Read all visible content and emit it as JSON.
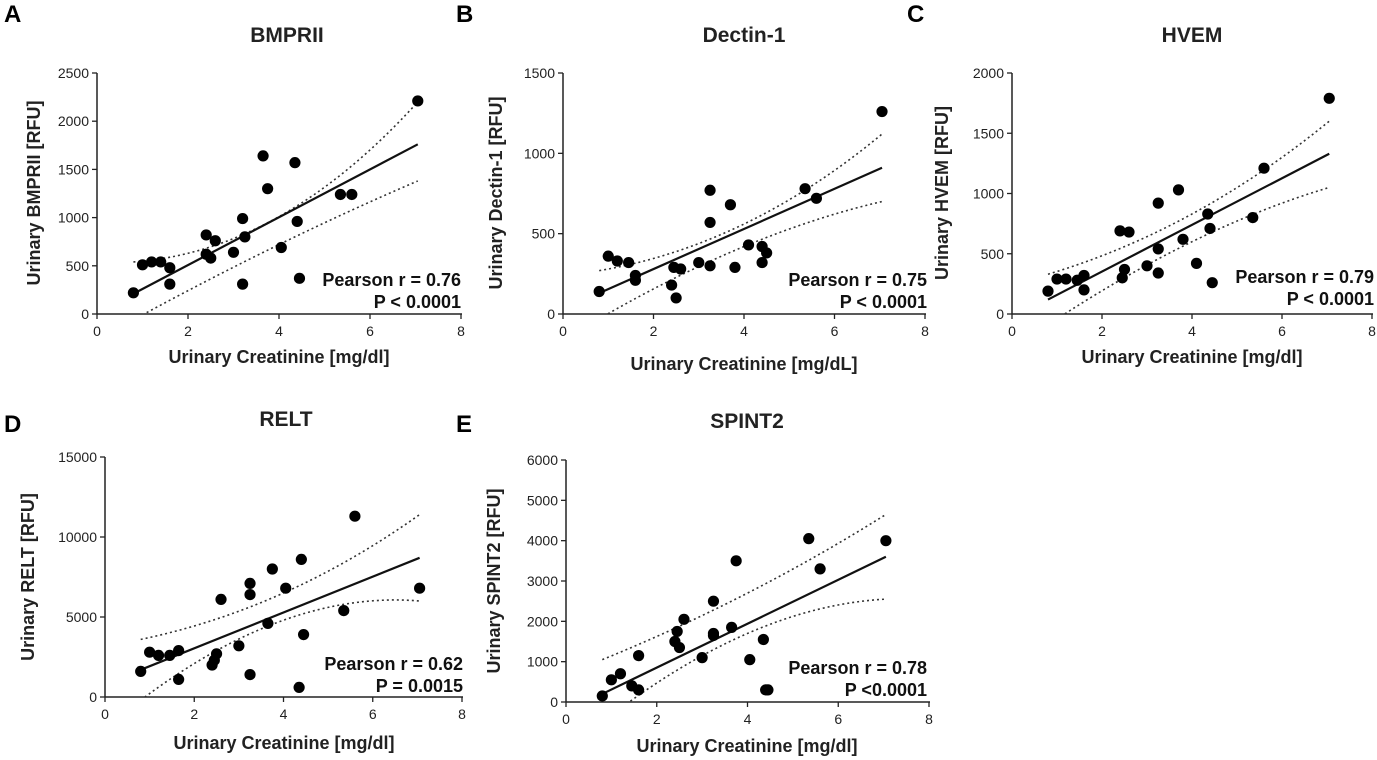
{
  "chart_data": [
    {
      "type": "scatter",
      "panel": "A",
      "title": "BMPRII",
      "xlabel": "Urinary Creatinine  [mg/dl]",
      "ylabel": "Urinary BMPRII [RFU]",
      "xlim": [
        0,
        8
      ],
      "ylim": [
        0,
        2500
      ],
      "xticks": [
        0,
        2,
        4,
        6,
        8
      ],
      "yticks": [
        0,
        500,
        1000,
        1500,
        2000,
        2500
      ],
      "pearson": "Pearson r = 0.76",
      "pvalue": "P < 0.0001",
      "regression": {
        "x": [
          0.8,
          7.05
        ],
        "y": [
          210,
          1760
        ]
      },
      "ci_upper": {
        "x": [
          0.8,
          4.0,
          7.05
        ],
        "y": [
          540,
          1010,
          2200
        ]
      },
      "ci_lower": {
        "x": [
          0.8,
          4.0,
          7.05
        ],
        "y": [
          -60,
          720,
          1380
        ]
      },
      "points": {
        "x": [
          0.8,
          1.0,
          1.2,
          1.4,
          1.6,
          1.6,
          2.4,
          2.4,
          2.5,
          2.6,
          3.0,
          3.2,
          3.2,
          3.25,
          3.65,
          3.75,
          4.05,
          4.35,
          4.4,
          4.45,
          5.35,
          5.6,
          7.05
        ],
        "y": [
          220,
          510,
          540,
          540,
          480,
          310,
          820,
          620,
          580,
          760,
          640,
          990,
          310,
          800,
          1640,
          1300,
          690,
          1570,
          960,
          370,
          1240,
          1240,
          2210
        ]
      }
    },
    {
      "type": "scatter",
      "panel": "B",
      "title": "Dectin-1",
      "xlabel": "Urinary Creatinine [mg/dL]",
      "ylabel": "Urinary Dectin-1 [RFU]",
      "xlim": [
        0,
        8
      ],
      "ylim": [
        0,
        1500
      ],
      "xticks": [
        0,
        2,
        4,
        6,
        8
      ],
      "yticks": [
        0,
        500,
        1000,
        1500
      ],
      "pearson": "Pearson r = 0.75",
      "pvalue": "P < 0.0001",
      "regression": {
        "x": [
          0.8,
          7.05
        ],
        "y": [
          130,
          910
        ]
      },
      "ci_upper": {
        "x": [
          0.8,
          4.0,
          7.05
        ],
        "y": [
          270,
          560,
          1120
        ]
      },
      "ci_lower": {
        "x": [
          0.8,
          4.0,
          7.05
        ],
        "y": [
          -30,
          420,
          700
        ]
      },
      "points": {
        "x": [
          0.8,
          1.0,
          1.2,
          1.45,
          1.6,
          1.6,
          2.4,
          2.45,
          2.5,
          2.6,
          3.0,
          3.25,
          3.25,
          3.25,
          3.7,
          3.8,
          4.1,
          4.4,
          4.4,
          4.5,
          5.35,
          5.6,
          7.05
        ],
        "y": [
          140,
          360,
          330,
          320,
          240,
          210,
          180,
          290,
          100,
          280,
          320,
          300,
          570,
          770,
          680,
          290,
          430,
          420,
          320,
          380,
          780,
          720,
          1260
        ]
      }
    },
    {
      "type": "scatter",
      "panel": "C",
      "title": "HVEM",
      "xlabel": "Urinary Creatinine [mg/dl]",
      "ylabel": "Urinary HVEM [RFU]",
      "xlim": [
        0,
        8
      ],
      "ylim": [
        0,
        2000
      ],
      "xticks": [
        0,
        2,
        4,
        6,
        8
      ],
      "yticks": [
        0,
        500,
        1000,
        1500,
        2000
      ],
      "pearson": "Pearson r = 0.79",
      "pvalue": "P < 0.0001",
      "regression": {
        "x": [
          0.8,
          7.05
        ],
        "y": [
          120,
          1330
        ]
      },
      "ci_upper": {
        "x": [
          0.8,
          4.0,
          7.05
        ],
        "y": [
          330,
          830,
          1600
        ]
      },
      "ci_lower": {
        "x": [
          0.8,
          4.0,
          7.05
        ],
        "y": [
          -90,
          600,
          1050
        ]
      },
      "points": {
        "x": [
          0.8,
          1.0,
          1.2,
          1.45,
          1.6,
          1.6,
          2.4,
          2.45,
          2.5,
          2.6,
          3.0,
          3.25,
          3.25,
          3.25,
          3.7,
          3.8,
          4.1,
          4.35,
          4.4,
          4.45,
          5.35,
          5.6,
          7.05
        ],
        "y": [
          190,
          290,
          290,
          280,
          320,
          200,
          690,
          300,
          370,
          680,
          400,
          920,
          540,
          340,
          1030,
          620,
          420,
          830,
          710,
          260,
          800,
          1210,
          1790
        ]
      }
    },
    {
      "type": "scatter",
      "panel": "D",
      "title": "RELT",
      "xlabel": "Urinary Creatinine  [mg/dl]",
      "ylabel": "Urinary RELT [RFU]",
      "xlim": [
        0,
        8
      ],
      "ylim": [
        0,
        15000
      ],
      "xticks": [
        0,
        2,
        4,
        6,
        8
      ],
      "yticks": [
        0,
        5000,
        10000,
        15000
      ],
      "pearson": "Pearson r = 0.62",
      "pvalue": "P = 0.0015",
      "regression": {
        "x": [
          0.8,
          7.05
        ],
        "y": [
          1700,
          8700
        ]
      },
      "ci_upper": {
        "x": [
          0.8,
          4.0,
          7.05
        ],
        "y": [
          3600,
          6500,
          11400
        ]
      },
      "ci_lower": {
        "x": [
          0.8,
          4.0,
          7.05
        ],
        "y": [
          -200,
          4800,
          6000
        ]
      },
      "points": {
        "x": [
          0.8,
          1.0,
          1.2,
          1.45,
          1.65,
          1.65,
          2.4,
          2.45,
          2.5,
          2.6,
          3.0,
          3.25,
          3.25,
          3.25,
          3.65,
          3.75,
          4.05,
          4.35,
          4.4,
          4.45,
          5.35,
          5.6,
          7.05
        ],
        "y": [
          1600,
          2800,
          2600,
          2600,
          2900,
          1100,
          2000,
          2300,
          2700,
          6100,
          3200,
          7100,
          6400,
          1400,
          4600,
          8000,
          6800,
          600,
          8600,
          3900,
          5400,
          11300,
          6800
        ]
      }
    },
    {
      "type": "scatter",
      "panel": "E",
      "title": "SPINT2",
      "xlabel": "Urinary Creatinine  [mg/dl]",
      "ylabel": "Urinary SPINT2 [RFU]",
      "xlim": [
        0,
        8
      ],
      "ylim": [
        0,
        6000
      ],
      "xticks": [
        0,
        2,
        4,
        6,
        8
      ],
      "yticks": [
        0,
        1000,
        2000,
        3000,
        4000,
        5000,
        6000
      ],
      "pearson": "Pearson r = 0.78",
      "pvalue": "P <0.0001",
      "regression": {
        "x": [
          0.8,
          7.05
        ],
        "y": [
          200,
          3600
        ]
      },
      "ci_upper": {
        "x": [
          0.8,
          4.0,
          7.05
        ],
        "y": [
          1050,
          2700,
          4650
        ]
      },
      "ci_lower": {
        "x": [
          0.8,
          4.0,
          7.05
        ],
        "y": [
          -500,
          1700,
          2550
        ]
      },
      "points": {
        "x": [
          0.8,
          1.0,
          1.2,
          1.45,
          1.6,
          1.6,
          2.4,
          2.45,
          2.5,
          2.6,
          3.0,
          3.25,
          3.25,
          3.25,
          3.65,
          3.75,
          4.05,
          4.35,
          4.4,
          4.45,
          5.35,
          5.6,
          7.05
        ],
        "y": [
          150,
          550,
          700,
          400,
          1150,
          300,
          1500,
          1750,
          1350,
          2050,
          1100,
          2500,
          1700,
          1650,
          1850,
          3500,
          1050,
          1550,
          300,
          300,
          4050,
          3300,
          4000
        ]
      }
    }
  ]
}
